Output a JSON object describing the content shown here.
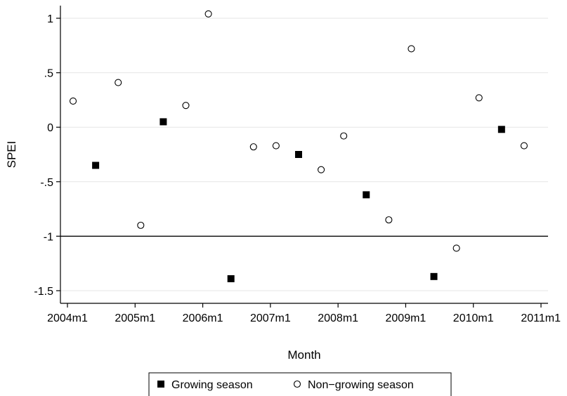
{
  "chart_data": {
    "type": "scatter",
    "title": "",
    "xlabel": "Month",
    "ylabel": "SPEI",
    "x_ticks": [
      "2004m1",
      "2005m1",
      "2006m1",
      "2007m1",
      "2008m1",
      "2009m1",
      "2010m1",
      "2011m1"
    ],
    "y_ticks": [
      "1",
      ".5",
      "0",
      "-.5",
      "-1",
      "-1.5"
    ],
    "y_tick_values": [
      1,
      0.5,
      0,
      -0.5,
      -1,
      -1.5
    ],
    "xlim": [
      "2004-01",
      "2011-01"
    ],
    "ylim": [
      -1.55,
      1.1
    ],
    "grid": true,
    "reference_line": -1,
    "legend_position": "bottom",
    "series": [
      {
        "name": "Growing season",
        "marker": "filled-square",
        "color": "#000000",
        "points": [
          {
            "x": "2004-06",
            "y": -0.35
          },
          {
            "x": "2005-06",
            "y": 0.05
          },
          {
            "x": "2006-06",
            "y": -1.39
          },
          {
            "x": "2007-06",
            "y": -0.25
          },
          {
            "x": "2008-06",
            "y": -0.62
          },
          {
            "x": "2009-06",
            "y": -1.37
          },
          {
            "x": "2010-06",
            "y": -0.02
          }
        ]
      },
      {
        "name": "Non−growing season",
        "marker": "hollow-circle",
        "color": "#000000",
        "points": [
          {
            "x": "2004-02",
            "y": 0.24
          },
          {
            "x": "2004-10",
            "y": 0.41
          },
          {
            "x": "2005-02",
            "y": -0.9
          },
          {
            "x": "2005-10",
            "y": 0.2
          },
          {
            "x": "2006-02",
            "y": 1.04
          },
          {
            "x": "2006-10",
            "y": -0.18
          },
          {
            "x": "2007-02",
            "y": -0.17
          },
          {
            "x": "2007-10",
            "y": -0.39
          },
          {
            "x": "2008-02",
            "y": -0.08
          },
          {
            "x": "2008-10",
            "y": -0.85
          },
          {
            "x": "2009-02",
            "y": 0.72
          },
          {
            "x": "2009-10",
            "y": -1.11
          },
          {
            "x": "2010-02",
            "y": 0.27
          },
          {
            "x": "2010-10",
            "y": -0.17
          }
        ]
      }
    ]
  }
}
